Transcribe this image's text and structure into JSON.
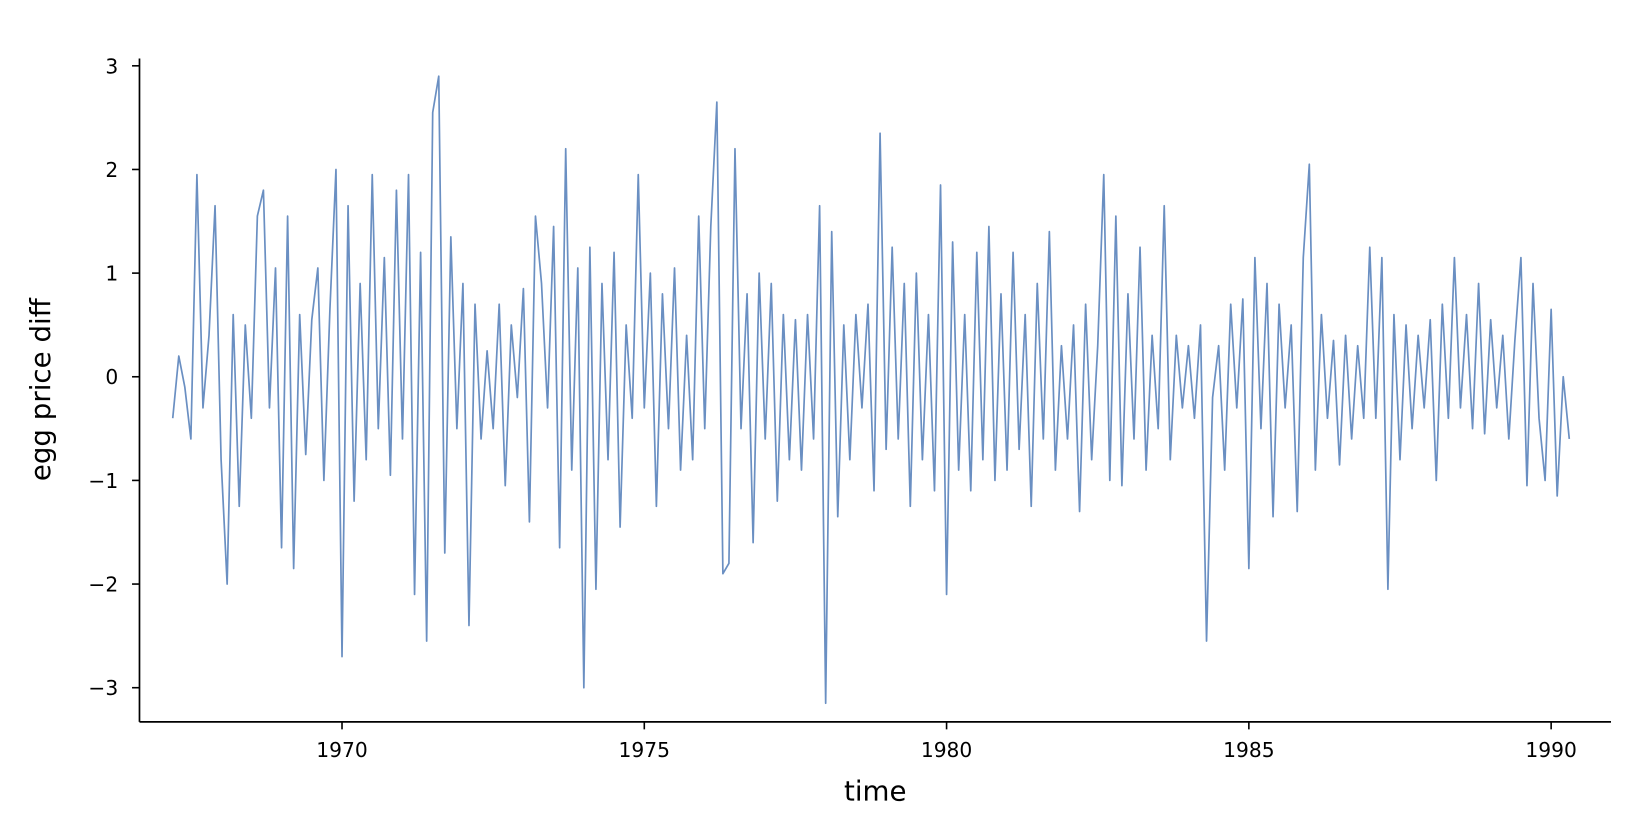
{
  "chart_data": {
    "type": "line",
    "x_label": "time",
    "y_label": "egg price diff",
    "xlim": [
      1966.65,
      1990.99
    ],
    "ylim": [
      -3.33,
      3.07
    ],
    "xticks": [
      1970,
      1975,
      1980,
      1985,
      1990
    ],
    "yticks": [
      {
        "value": -3,
        "label": "−3"
      },
      {
        "value": -2,
        "label": "−2"
      },
      {
        "value": -1,
        "label": "−1"
      },
      0,
      1,
      2,
      3
    ],
    "series": [
      {
        "color": "#6a8fc2",
        "x": [
          1967.2,
          1967.3,
          1967.4,
          1967.5,
          1967.6,
          1967.7,
          1967.8,
          1967.9,
          1968.0,
          1968.1,
          1968.2,
          1968.3,
          1968.4,
          1968.5,
          1968.6,
          1968.7,
          1968.8,
          1968.9,
          1969.0,
          1969.1,
          1969.2,
          1969.3,
          1969.4,
          1969.5,
          1969.6,
          1969.7,
          1969.8,
          1969.9,
          1970.0,
          1970.1,
          1970.2,
          1970.3,
          1970.4,
          1970.5,
          1970.6,
          1970.7,
          1970.8,
          1970.9,
          1971.0,
          1971.1,
          1971.2,
          1971.3,
          1971.4,
          1971.5,
          1971.6,
          1971.7,
          1971.8,
          1971.9,
          1972.0,
          1972.1,
          1972.2,
          1972.3,
          1972.4,
          1972.5,
          1972.6,
          1972.7,
          1972.8,
          1972.9,
          1973.0,
          1973.1,
          1973.2,
          1973.3,
          1973.4,
          1973.5,
          1973.6,
          1973.7,
          1973.8,
          1973.9,
          1974.0,
          1974.1,
          1974.2,
          1974.3,
          1974.4,
          1974.5,
          1974.6,
          1974.7,
          1974.8,
          1974.9,
          1975.0,
          1975.1,
          1975.2,
          1975.3,
          1975.4,
          1975.5,
          1975.6,
          1975.7,
          1975.8,
          1975.9,
          1976.0,
          1976.1,
          1976.2,
          1976.3,
          1976.4,
          1976.5,
          1976.6,
          1976.7,
          1976.8,
          1976.9,
          1977.0,
          1977.1,
          1977.2,
          1977.3,
          1977.4,
          1977.5,
          1977.6,
          1977.7,
          1977.8,
          1977.9,
          1978.0,
          1978.1,
          1978.2,
          1978.3,
          1978.4,
          1978.5,
          1978.6,
          1978.7,
          1978.8,
          1978.9,
          1979.0,
          1979.1,
          1979.2,
          1979.3,
          1979.4,
          1979.5,
          1979.6,
          1979.7,
          1979.8,
          1979.9,
          1980.0,
          1980.1,
          1980.2,
          1980.3,
          1980.4,
          1980.5,
          1980.6,
          1980.7,
          1980.8,
          1980.9,
          1981.0,
          1981.1,
          1981.2,
          1981.3,
          1981.4,
          1981.5,
          1981.6,
          1981.7,
          1981.8,
          1981.9,
          1982.0,
          1982.1,
          1982.2,
          1982.3,
          1982.4,
          1982.5,
          1982.6,
          1982.7,
          1982.8,
          1982.9,
          1983.0,
          1983.1,
          1983.2,
          1983.3,
          1983.4,
          1983.5,
          1983.6,
          1983.7,
          1983.8,
          1983.9,
          1984.0,
          1984.1,
          1984.2,
          1984.3,
          1984.4,
          1984.5,
          1984.6,
          1984.7,
          1984.8,
          1984.9,
          1985.0,
          1985.1,
          1985.2,
          1985.3,
          1985.4,
          1985.5,
          1985.6,
          1985.7,
          1985.8,
          1985.9,
          1986.0,
          1986.1,
          1986.2,
          1986.3,
          1986.4,
          1986.5,
          1986.6,
          1986.7,
          1986.8,
          1986.9,
          1987.0,
          1987.1,
          1987.2,
          1987.3,
          1987.4,
          1987.5,
          1987.6,
          1987.7,
          1987.8,
          1987.9,
          1988.0,
          1988.1,
          1988.2,
          1988.3,
          1988.4,
          1988.5,
          1988.6,
          1988.7,
          1988.8,
          1988.9,
          1989.0,
          1989.1,
          1989.2,
          1989.3,
          1989.4,
          1989.5,
          1989.6,
          1989.7,
          1989.8,
          1989.9,
          1990.0,
          1990.1,
          1990.2,
          1990.3
        ],
        "values": [
          -0.4,
          0.2,
          -0.1,
          -0.6,
          1.95,
          -0.3,
          0.4,
          1.65,
          -0.8,
          -2.0,
          0.6,
          -1.25,
          0.5,
          -0.4,
          1.55,
          1.8,
          -0.3,
          1.05,
          -1.65,
          1.55,
          -1.85,
          0.6,
          -0.75,
          0.55,
          1.05,
          -1.0,
          0.65,
          2.0,
          -2.7,
          1.65,
          -1.2,
          0.9,
          -0.8,
          1.95,
          -0.5,
          1.15,
          -0.95,
          1.8,
          -0.6,
          1.95,
          -2.1,
          1.2,
          -2.55,
          2.55,
          2.9,
          -1.7,
          1.35,
          -0.5,
          0.9,
          -2.4,
          0.7,
          -0.6,
          0.25,
          -0.5,
          0.7,
          -1.05,
          0.5,
          -0.2,
          0.85,
          -1.4,
          1.55,
          0.9,
          -0.3,
          1.45,
          -1.65,
          2.2,
          -0.9,
          1.05,
          -3.0,
          1.25,
          -2.05,
          0.9,
          -0.8,
          1.2,
          -1.45,
          0.5,
          -0.4,
          1.95,
          -0.3,
          1.0,
          -1.25,
          0.8,
          -0.5,
          1.05,
          -0.9,
          0.4,
          -0.8,
          1.55,
          -0.5,
          1.45,
          2.65,
          -1.9,
          -1.8,
          2.2,
          -0.5,
          0.8,
          -1.6,
          1.0,
          -0.6,
          0.9,
          -1.2,
          0.6,
          -0.8,
          0.55,
          -0.9,
          0.6,
          -0.6,
          1.65,
          -3.15,
          1.4,
          -1.35,
          0.5,
          -0.8,
          0.6,
          -0.3,
          0.7,
          -1.1,
          2.35,
          -0.7,
          1.25,
          -0.6,
          0.9,
          -1.25,
          1.0,
          -0.8,
          0.6,
          -1.1,
          1.85,
          -2.1,
          1.3,
          -0.9,
          0.6,
          -1.1,
          1.2,
          -0.8,
          1.45,
          -1.0,
          0.8,
          -0.9,
          1.2,
          -0.7,
          0.6,
          -1.25,
          0.9,
          -0.6,
          1.4,
          -0.9,
          0.3,
          -0.6,
          0.5,
          -1.3,
          0.7,
          -0.8,
          0.3,
          1.95,
          -1.0,
          1.55,
          -1.05,
          0.8,
          -0.6,
          1.25,
          -0.9,
          0.4,
          -0.5,
          1.65,
          -0.8,
          0.4,
          -0.3,
          0.3,
          -0.4,
          0.5,
          -2.55,
          -0.2,
          0.3,
          -0.9,
          0.7,
          -0.3,
          0.75,
          -1.85,
          1.15,
          -0.5,
          0.9,
          -1.35,
          0.7,
          -0.3,
          0.5,
          -1.3,
          1.15,
          2.05,
          -0.9,
          0.6,
          -0.4,
          0.35,
          -0.85,
          0.4,
          -0.6,
          0.3,
          -0.4,
          1.25,
          -0.4,
          1.15,
          -2.05,
          0.6,
          -0.8,
          0.5,
          -0.5,
          0.4,
          -0.3,
          0.55,
          -1.0,
          0.7,
          -0.4,
          1.15,
          -0.3,
          0.6,
          -0.5,
          0.9,
          -0.55,
          0.55,
          -0.3,
          0.4,
          -0.6,
          0.35,
          1.15,
          -1.05,
          0.9,
          -0.4,
          -1.0,
          0.65,
          -1.15,
          0.0,
          -0.6
        ]
      }
    ]
  }
}
